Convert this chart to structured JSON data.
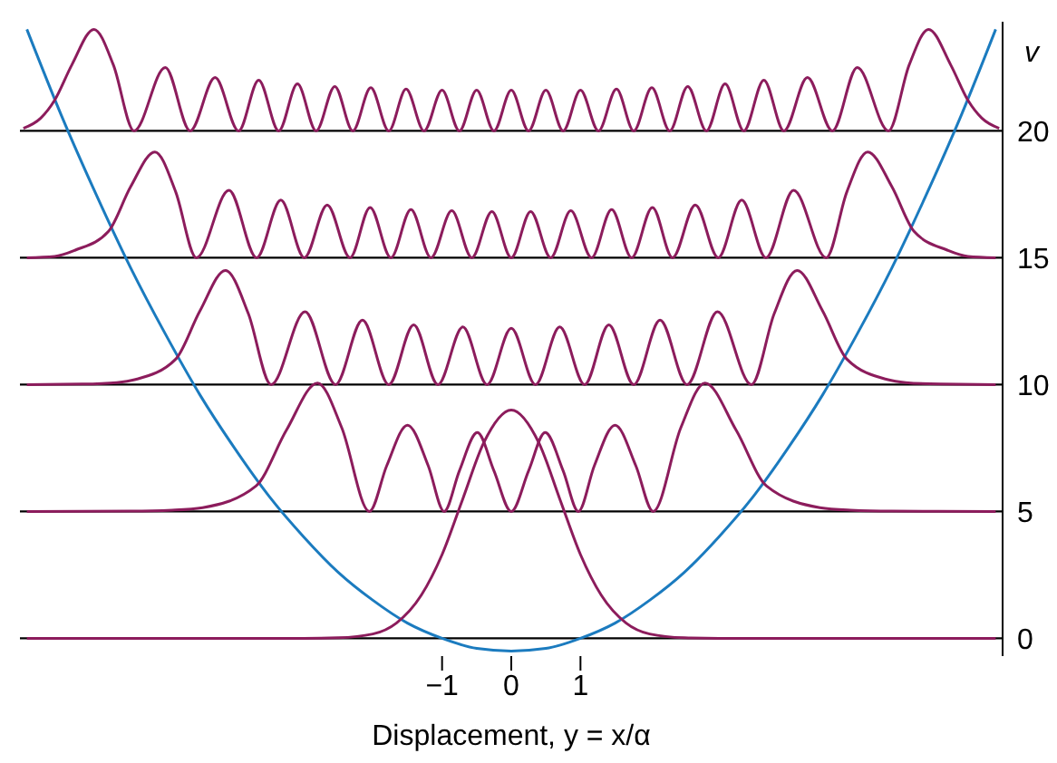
{
  "chart_data": {
    "type": "line",
    "xlabel": "Displacement, y = x/α",
    "ylabel": "v",
    "xlim": [
      -7.1,
      7.1
    ],
    "xticks": [
      -1,
      0,
      1
    ],
    "ylim": [
      -0.7,
      24.3
    ],
    "yticks": [
      0,
      5,
      10,
      15,
      20
    ],
    "grid": "y",
    "series": [
      {
        "color": "#1b7bbf",
        "x": [
          -7,
          -6.5,
          -6,
          -5.5,
          -5,
          -4.5,
          -4,
          -3.5,
          -3,
          -2.5,
          -2,
          -1.5,
          -1,
          -0.5,
          0,
          0.5,
          1,
          1.5,
          2,
          2.5,
          3,
          3.5,
          4,
          4.5,
          5,
          5.5,
          6,
          6.5,
          7
        ],
        "values": [
          24,
          20.6,
          17.5,
          14.6,
          12,
          9.6,
          7.5,
          5.6,
          4,
          2.6,
          1.5,
          0.6,
          0,
          -0.4,
          -0.5,
          -0.4,
          0,
          0.6,
          1.5,
          2.6,
          4,
          5.6,
          7.5,
          9.6,
          12,
          14.6,
          17.5,
          20.6,
          24
        ]
      },
      {
        "color": "#8c1c5c",
        "x": [
          -7,
          -3,
          -2.5,
          -2,
          -1.66,
          -1.3,
          -1,
          -0.7,
          -0.4,
          0,
          0.4,
          0.7,
          1,
          1.3,
          1.66,
          2,
          2.5,
          3,
          7
        ],
        "values": [
          0,
          0,
          0.02,
          0.17,
          0.6,
          1.7,
          3.3,
          5.5,
          7.7,
          9,
          7.7,
          5.5,
          3.3,
          1.7,
          0.6,
          0.17,
          0.02,
          0,
          0
        ]
      },
      {
        "color": "#8c1c5c",
        "x": [
          -7,
          -5.5,
          -4.9,
          -4.46,
          -3.69,
          -3.25,
          -2.8,
          -2.45,
          -2.05,
          -1.8,
          -1.5,
          -1.2,
          -0.97,
          -0.75,
          -0.49,
          -0.25,
          0,
          0.25,
          0.49,
          0.75,
          0.97,
          1.2,
          1.5,
          1.8,
          2.05,
          2.45,
          2.8,
          3.25,
          3.69,
          4.46,
          4.9,
          5.5,
          7
        ],
        "values": [
          5,
          5.01,
          5.05,
          5.15,
          6,
          8.2,
          10.06,
          8.3,
          5,
          6.8,
          8.4,
          6.8,
          5,
          6.6,
          8.11,
          6.6,
          5,
          6.6,
          8.11,
          6.6,
          5,
          6.8,
          8.4,
          6.8,
          5,
          8.3,
          10.06,
          8.2,
          6,
          5.15,
          5.05,
          5.01,
          5
        ]
      },
      {
        "color": "#8c1c5c",
        "x": [
          -7,
          -6.2,
          -5.7,
          -5.43,
          -4.85,
          -4.5,
          -4.13,
          -3.8,
          -3.47,
          -2.98,
          -2.54,
          -2.15,
          -1.77,
          -1.41,
          -1.06,
          -0.7,
          -0.35,
          0,
          0.35,
          0.7,
          1.06,
          1.41,
          1.77,
          2.15,
          2.54,
          2.98,
          3.47,
          3.8,
          4.13,
          4.5,
          4.85,
          5.43,
          5.7,
          6.2,
          7
        ],
        "values": [
          10,
          10.02,
          10.08,
          10.2,
          11,
          12.9,
          14.5,
          12.8,
          10,
          12.87,
          10,
          12.54,
          10,
          12.35,
          10,
          12.27,
          10,
          12.22,
          10,
          12.27,
          10,
          12.35,
          10,
          12.54,
          10,
          12.87,
          10,
          12.8,
          14.5,
          12.9,
          11,
          10.2,
          10.08,
          10.02,
          10
        ]
      },
      {
        "color": "#8c1c5c",
        "x": [
          -7,
          -6.6,
          -6.3,
          -5.82,
          -5.5,
          -5.15,
          -4.85,
          -4.55,
          -4.08,
          -3.68,
          -3.33,
          -2.99,
          -2.66,
          -2.33,
          -2.04,
          -1.74,
          -1.45,
          -1.16,
          -0.86,
          -0.57,
          -0.28,
          0,
          0.28,
          0.57,
          0.86,
          1.16,
          1.45,
          1.74,
          2.04,
          2.33,
          2.66,
          2.99,
          3.33,
          3.68,
          4.08,
          4.55,
          4.85,
          5.15,
          5.5,
          5.82,
          6.3,
          6.6,
          7
        ],
        "values": [
          15,
          15.05,
          15.3,
          16.04,
          17.8,
          19.17,
          17.6,
          15,
          17.66,
          15,
          17.27,
          15,
          17.08,
          15,
          16.98,
          15,
          16.9,
          15,
          16.85,
          15,
          16.82,
          15,
          16.82,
          15,
          16.85,
          15,
          16.9,
          15,
          16.98,
          15,
          17.08,
          15,
          17.27,
          15,
          17.66,
          15,
          17.6,
          19.17,
          17.8,
          16.04,
          15.3,
          15.05,
          15
        ]
      },
      {
        "color": "#8c1c5c",
        "x": [
          -7.05,
          -6.8,
          -6.6,
          -6.35,
          -6.03,
          -5.75,
          -5.45,
          -5,
          -4.64,
          -4.28,
          -3.94,
          -3.65,
          -3.36,
          -3.09,
          -2.82,
          -2.55,
          -2.29,
          -2.03,
          -1.77,
          -1.52,
          -1.26,
          -1,
          -0.75,
          -0.5,
          -0.25,
          0,
          0.25,
          0.5,
          0.75,
          1,
          1.26,
          1.52,
          1.77,
          2.03,
          2.29,
          2.55,
          2.82,
          3.09,
          3.36,
          3.65,
          3.94,
          4.28,
          4.64,
          5,
          5.45,
          5.75,
          6.03,
          6.35,
          6.6,
          6.8,
          7.05
        ],
        "values": [
          20.1,
          20.5,
          21.2,
          22.6,
          24,
          22.6,
          20,
          22.5,
          20,
          22.1,
          20,
          22,
          20,
          21.85,
          20,
          21.75,
          20,
          21.7,
          20,
          21.65,
          20,
          21.6,
          20,
          21.6,
          20,
          21.6,
          20,
          21.6,
          20,
          21.6,
          20,
          21.65,
          20,
          21.7,
          20,
          21.75,
          20,
          21.85,
          20,
          22,
          20,
          22.1,
          20,
          22.5,
          20,
          22.6,
          24,
          22.6,
          21.2,
          20.5,
          20.1
        ]
      }
    ]
  }
}
